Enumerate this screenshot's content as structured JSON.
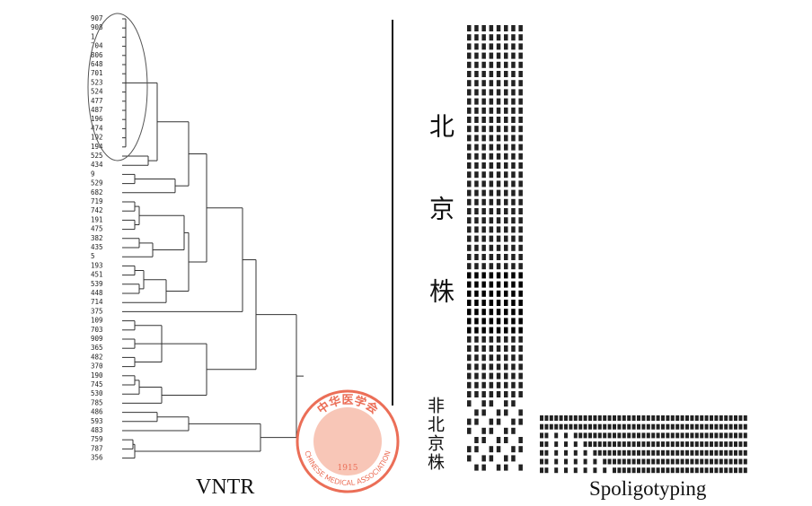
{
  "strains": [
    "907",
    "908",
    "1",
    "704",
    "806",
    "648",
    "701",
    "523",
    "524",
    "477",
    "487",
    "196",
    "474",
    "192",
    "194",
    "525",
    "434",
    "9",
    "529",
    "682",
    "719",
    "742",
    "191",
    "475",
    "382",
    "435",
    "5",
    "193",
    "451",
    "539",
    "448",
    "714",
    "375",
    "109",
    "703",
    "909",
    "365",
    "482",
    "370",
    "190",
    "745",
    "530",
    "785",
    "486",
    "593",
    "483",
    "759",
    "787",
    "356"
  ],
  "groups": {
    "beijing": "北京株",
    "non_beijing": "非北京株"
  },
  "captions": {
    "vntr": "VNTR",
    "spoligotyping": "Spoligotyping"
  },
  "watermark": {
    "title": "中华医学会",
    "subtitle": "CHINESE MEDICAL ASSOCIATION",
    "year": "1915"
  }
}
